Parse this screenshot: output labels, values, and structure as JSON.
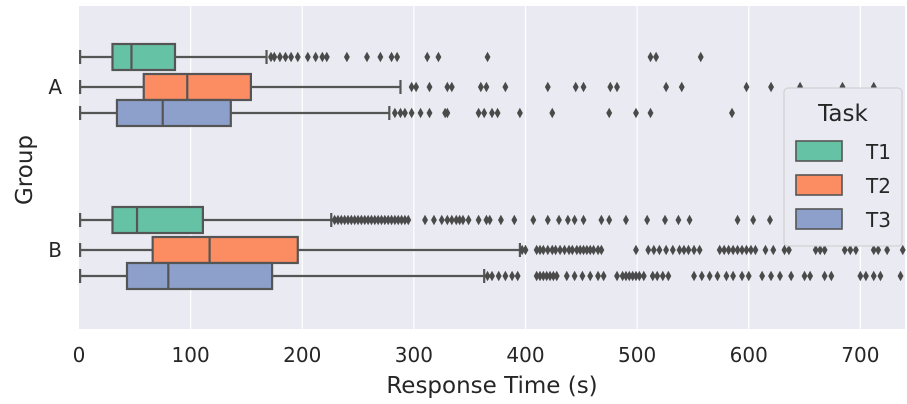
{
  "chart_data": {
    "type": "boxplot",
    "orientation": "horizontal",
    "xlabel": "Response Time (s)",
    "ylabel": "Group",
    "xlim": [
      0,
      740
    ],
    "x_ticks": [
      0,
      100,
      200,
      300,
      400,
      500,
      600,
      700
    ],
    "categories": [
      "A",
      "B"
    ],
    "grid": true,
    "background_color": "#eaeaf2",
    "legend": {
      "title": "Task",
      "position": "right",
      "entries": [
        {
          "label": "T1",
          "color": "#66c2a5"
        },
        {
          "label": "T2",
          "color": "#fc8d62"
        },
        {
          "label": "T3",
          "color": "#8da0cb"
        }
      ]
    },
    "series": [
      {
        "name": "T1",
        "color": "#66c2a5",
        "boxes": [
          {
            "group": "A",
            "whisker_low": 1,
            "q1": 30,
            "median": 47,
            "q3": 86,
            "whisker_high": 168,
            "outliers": [
              172,
              175,
              180,
              185,
              190,
              196,
              205,
              212,
              218,
              222,
              240,
              258,
              270,
              280,
              285,
              312,
              322,
              366,
              512,
              517,
              557
            ]
          },
          {
            "group": "B",
            "whisker_low": 1,
            "q1": 30,
            "median": 52,
            "q3": 111,
            "whisker_high": 226,
            "outliers": [
              229,
              232,
              235,
              238,
              241,
              244,
              247,
              250,
              253,
              256,
              259,
              262,
              265,
              268,
              271,
              274,
              277,
              280,
              283,
              286,
              289,
              292,
              295,
              310,
              318,
              325,
              330,
              334,
              338,
              341,
              344,
              349,
              358,
              365,
              368,
              378,
              390,
              407,
              420,
              430,
              438,
              444,
              452,
              468,
              475,
              490,
              509,
              525,
              537,
              547,
              590,
              604,
              619,
              640,
              645,
              650,
              660,
              670,
              680,
              690
            ]
          }
        ]
      },
      {
        "name": "T2",
        "color": "#fc8d62",
        "boxes": [
          {
            "group": "A",
            "whisker_low": 1,
            "q1": 58,
            "median": 97,
            "q3": 154,
            "whisker_high": 288,
            "outliers": [
              298,
              302,
              314,
              330,
              334,
              360,
              365,
              382,
              420,
              445,
              452,
              476,
              482,
              526,
              540,
              598,
              620,
              646,
              684,
              712
            ]
          },
          {
            "group": "B",
            "whisker_low": 1,
            "q1": 66,
            "median": 117,
            "q3": 196,
            "whisker_high": 395,
            "outliers": [
              397,
              400,
              410,
              413,
              416,
              420,
              424,
              427,
              431,
              435,
              439,
              442,
              446,
              449,
              452,
              455,
              458,
              461,
              465,
              468,
              499,
              510,
              515,
              520,
              526,
              532,
              538,
              542,
              546,
              551,
              556,
              574,
              578,
              582,
              586,
              590,
              594,
              598,
              602,
              606,
              615,
              622,
              632,
              636,
              660,
              664,
              668,
              686,
              691,
              696,
              712,
              716,
              724,
              738
            ]
          }
        ]
      },
      {
        "name": "T3",
        "color": "#8da0cb",
        "boxes": [
          {
            "group": "A",
            "whisker_low": 1,
            "q1": 34,
            "median": 75,
            "q3": 136,
            "whisker_high": 278,
            "outliers": [
              283,
              288,
              292,
              298,
              306,
              314,
              328,
              330,
              358,
              363,
              370,
              375,
              395,
              424,
              475,
              499,
              512,
              585
            ]
          },
          {
            "group": "B",
            "whisker_low": 1,
            "q1": 43,
            "median": 80,
            "q3": 173,
            "whisker_high": 363,
            "outliers": [
              366,
              370,
              376,
              382,
              388,
              393,
              410,
              413,
              416,
              419,
              422,
              425,
              428,
              437,
              444,
              451,
              458,
              465,
              470,
              482,
              487,
              490,
              493,
              496,
              499,
              502,
              506,
              514,
              518,
              523,
              528,
              551,
              558,
              565,
              572,
              580,
              586,
              594,
              600,
              612,
              620,
              628,
              638,
              650,
              655,
              668,
              674,
              700,
              705,
              712,
              718,
              736,
              741
            ]
          }
        ]
      }
    ]
  }
}
